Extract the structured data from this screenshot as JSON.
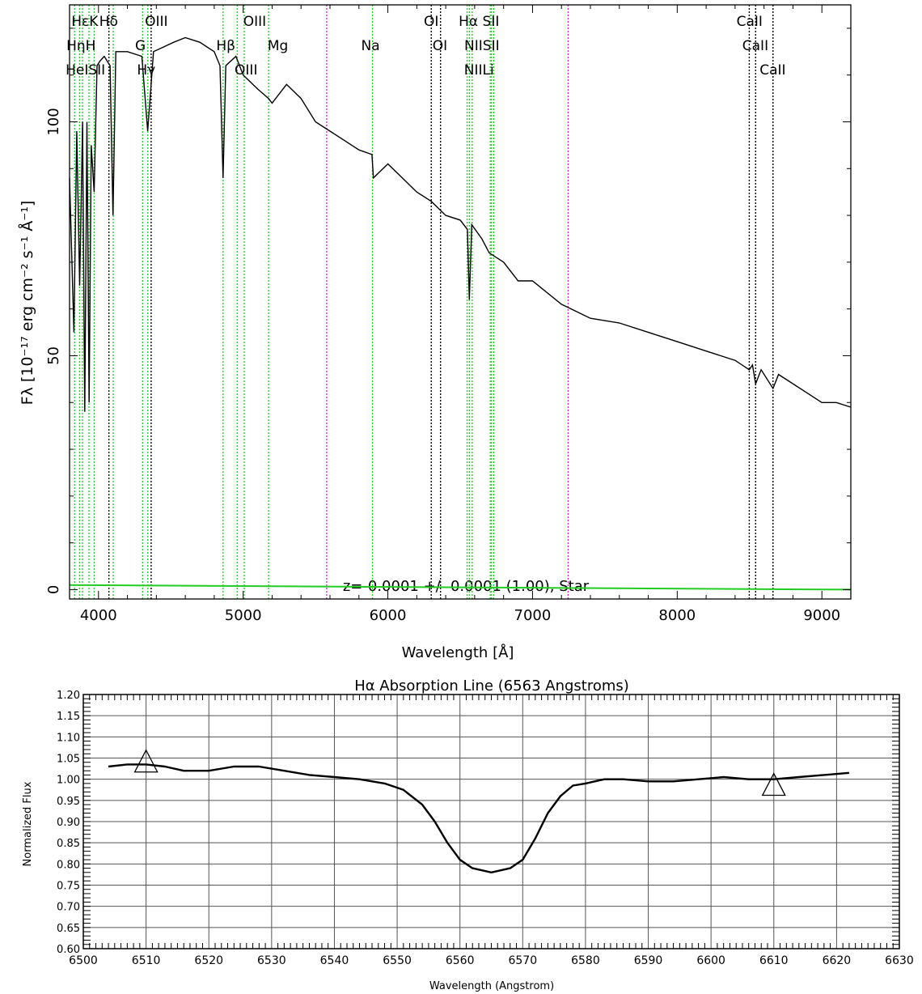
{
  "chart_data": [
    {
      "type": "line",
      "ylabel": "Fλ [10⁻¹⁷ erg cm⁻² s⁻¹ Å⁻¹]",
      "xlabel": "Wavelength [Å]",
      "annotation": "z=-0.0001 +/- 0.0001 (1.00), Star",
      "xlim": [
        3800,
        9200
      ],
      "ylim": [
        -2,
        125
      ],
      "x_ticks": [
        4000,
        5000,
        6000,
        7000,
        8000,
        9000
      ],
      "y_ticks": [
        0,
        50,
        100
      ],
      "grid": false,
      "series": [
        {
          "color": "#000000",
          "x": [
            3800,
            3830,
            3850,
            3870,
            3890,
            3905,
            3920,
            3935,
            3950,
            3970,
            3990,
            4010,
            4040,
            4080,
            4100,
            4120,
            4200,
            4300,
            4340,
            4380,
            4450,
            4520,
            4600,
            4700,
            4800,
            4840,
            4861,
            4880,
            4950,
            5000,
            5100,
            5175,
            5200,
            5300,
            5400,
            5500,
            5600,
            5700,
            5800,
            5890,
            5900,
            6000,
            6100,
            6200,
            6300,
            6400,
            6500,
            6550,
            6563,
            6580,
            6650,
            6700,
            6800,
            6900,
            7000,
            7200,
            7400,
            7600,
            7800,
            8000,
            8200,
            8400,
            8498,
            8520,
            8542,
            8580,
            8662,
            8700,
            8800,
            8900,
            9000,
            9100,
            9200
          ],
          "y": [
            88,
            55,
            98,
            65,
            100,
            38,
            100,
            40,
            95,
            85,
            112,
            113,
            114,
            112,
            80,
            115,
            115,
            114,
            98,
            115,
            116,
            117,
            118,
            117,
            115,
            112,
            88,
            112,
            114,
            110,
            107,
            105,
            104,
            108,
            105,
            100,
            98,
            96,
            94,
            93,
            88,
            91,
            88,
            85,
            83,
            80,
            79,
            77,
            62,
            78,
            75,
            72,
            70,
            66,
            66,
            61,
            58,
            57,
            55,
            53,
            51,
            49,
            47,
            48,
            44,
            47,
            43,
            46,
            44,
            42,
            40,
            40,
            39
          ]
        },
        {
          "color": "#22cc22",
          "x": [
            3800,
            9200
          ],
          "y": [
            1,
            0
          ]
        }
      ],
      "lines": [
        {
          "x": 3835,
          "color": "green"
        },
        {
          "x": 3869,
          "color": "green"
        },
        {
          "x": 3889,
          "color": "green"
        },
        {
          "x": 3934,
          "color": "green"
        },
        {
          "x": 3970,
          "color": "green"
        },
        {
          "x": 4072,
          "color": "black"
        },
        {
          "x": 4102,
          "color": "green"
        },
        {
          "x": 4305,
          "color": "green"
        },
        {
          "x": 4341,
          "color": "green"
        },
        {
          "x": 4364,
          "color": "black"
        },
        {
          "x": 4861,
          "color": "green"
        },
        {
          "x": 4959,
          "color": "green"
        },
        {
          "x": 5007,
          "color": "green"
        },
        {
          "x": 5176,
          "color": "green"
        },
        {
          "x": 5577,
          "color": "magenta"
        },
        {
          "x": 5894,
          "color": "green"
        },
        {
          "x": 6300,
          "color": "black"
        },
        {
          "x": 6364,
          "color": "black"
        },
        {
          "x": 6548,
          "color": "green"
        },
        {
          "x": 6563,
          "color": "green"
        },
        {
          "x": 6583,
          "color": "green"
        },
        {
          "x": 6708,
          "color": "green"
        },
        {
          "x": 6716,
          "color": "green"
        },
        {
          "x": 6731,
          "color": "green"
        },
        {
          "x": 7246,
          "color": "magenta"
        },
        {
          "x": 8498,
          "color": "black"
        },
        {
          "x": 8542,
          "color": "black"
        },
        {
          "x": 8662,
          "color": "black"
        }
      ],
      "line_labels": [
        {
          "x": 3905,
          "row": 0,
          "text": "HεK"
        },
        {
          "x": 4070,
          "row": 0,
          "text": "Hδ"
        },
        {
          "x": 4400,
          "row": 0,
          "text": "OIII"
        },
        {
          "x": 5080,
          "row": 0,
          "text": "OIII"
        },
        {
          "x": 6300,
          "row": 0,
          "text": "OI"
        },
        {
          "x": 6630,
          "row": 0,
          "text": "Hα SII"
        },
        {
          "x": 8500,
          "row": 0,
          "text": "CaII"
        },
        {
          "x": 3880,
          "row": 1,
          "text": "HηH"
        },
        {
          "x": 4290,
          "row": 1,
          "text": "G"
        },
        {
          "x": 4880,
          "row": 1,
          "text": "Hβ"
        },
        {
          "x": 5240,
          "row": 1,
          "text": "Mg"
        },
        {
          "x": 5880,
          "row": 1,
          "text": "Na"
        },
        {
          "x": 6360,
          "row": 1,
          "text": "OI"
        },
        {
          "x": 6650,
          "row": 1,
          "text": "NIISII"
        },
        {
          "x": 8540,
          "row": 1,
          "text": "CaII"
        },
        {
          "x": 3910,
          "row": 2,
          "text": "HeISII"
        },
        {
          "x": 4330,
          "row": 2,
          "text": "Hγ"
        },
        {
          "x": 5020,
          "row": 2,
          "text": "OIII"
        },
        {
          "x": 6630,
          "row": 2,
          "text": "NIILi"
        },
        {
          "x": 8660,
          "row": 2,
          "text": "CaII"
        }
      ]
    },
    {
      "type": "line",
      "title": "Hα Absorption Line (6563 Angstroms)",
      "xlabel": "Wavelength (Angstrom)",
      "ylabel": "Normalized Flux",
      "xlim": [
        6500,
        6630
      ],
      "ylim": [
        0.6,
        1.2
      ],
      "grid": true,
      "x_ticks": [
        6500,
        6510,
        6520,
        6530,
        6540,
        6550,
        6560,
        6570,
        6580,
        6590,
        6600,
        6610,
        6620,
        6630
      ],
      "y_ticks": [
        "0.60",
        "0.65",
        "0.70",
        "0.75",
        "0.80",
        "0.85",
        "0.90",
        "0.95",
        "1.00",
        "1.05",
        "1.10",
        "1.15",
        "1.20"
      ],
      "series": [
        {
          "color": "#000000",
          "x": [
            6504,
            6507,
            6510,
            6513,
            6516,
            6520,
            6524,
            6528,
            6532,
            6536,
            6540,
            6544,
            6548,
            6551,
            6554,
            6556,
            6558,
            6560,
            6562,
            6565,
            6568,
            6570,
            6572,
            6574,
            6576,
            6578,
            6580,
            6583,
            6586,
            6590,
            6594,
            6598,
            6602,
            6606,
            6610,
            6614,
            6618,
            6622
          ],
          "y": [
            1.03,
            1.035,
            1.035,
            1.03,
            1.02,
            1.02,
            1.03,
            1.03,
            1.02,
            1.01,
            1.005,
            1.0,
            0.99,
            0.975,
            0.94,
            0.9,
            0.85,
            0.81,
            0.79,
            0.78,
            0.79,
            0.81,
            0.86,
            0.92,
            0.96,
            0.985,
            0.99,
            1.0,
            1.0,
            0.995,
            0.995,
            1.0,
            1.005,
            1.0,
            1.0,
            1.005,
            1.01,
            1.015
          ]
        }
      ],
      "markers": [
        {
          "x": 6510,
          "y": 1.04,
          "shape": "triangle-up"
        },
        {
          "x": 6610,
          "y": 0.985,
          "shape": "triangle-up"
        }
      ]
    }
  ]
}
